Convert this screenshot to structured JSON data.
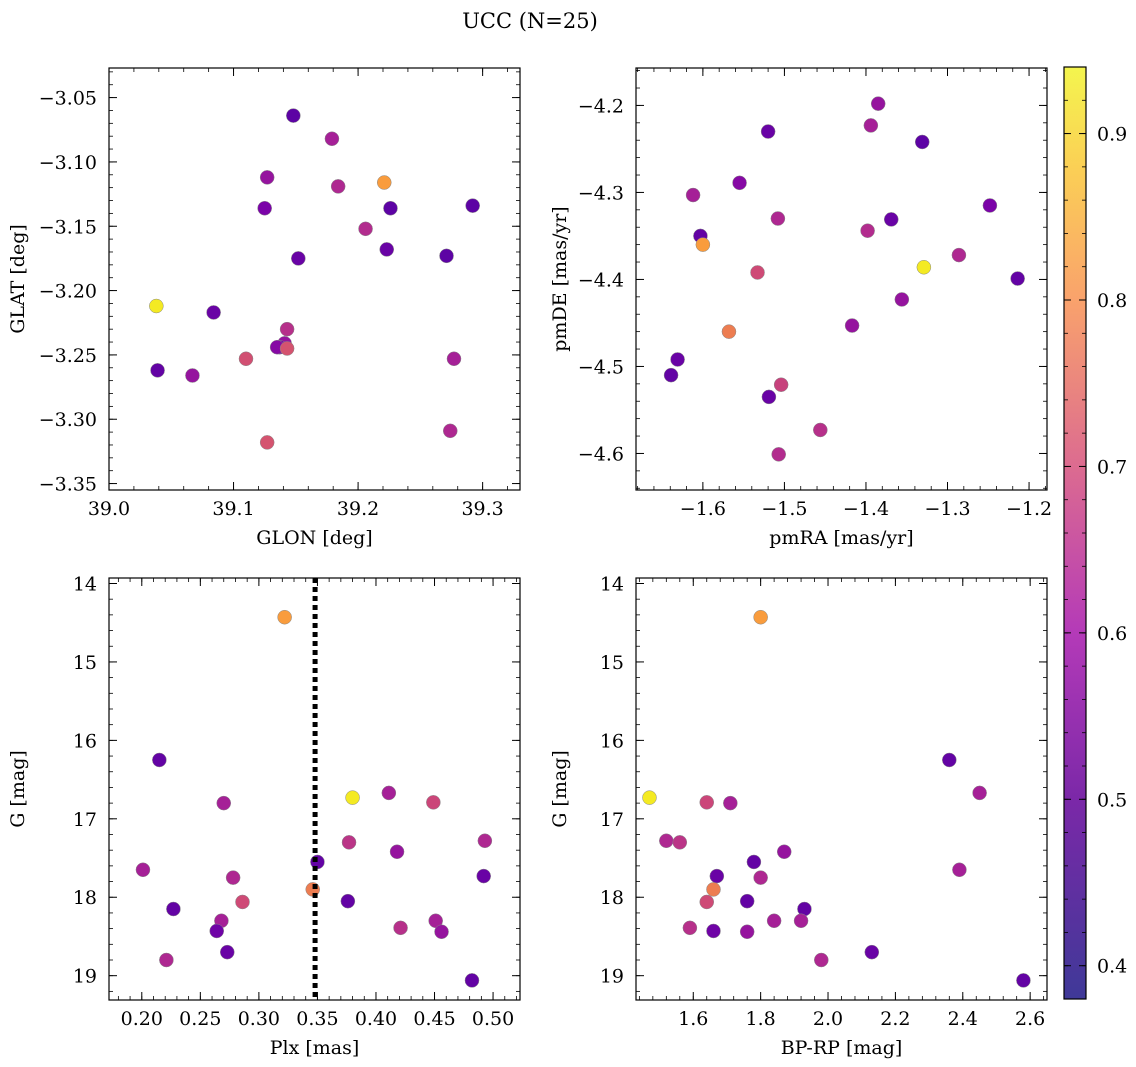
{
  "figure": {
    "title": "UCC (N=25)"
  },
  "colorbar": {
    "colormap": "plasma",
    "vmin": 0.38,
    "vmax": 0.94,
    "ticks": [
      0.4,
      0.5,
      0.6,
      0.7,
      0.8,
      0.9
    ],
    "tick_labels": [
      "0.4",
      "0.5",
      "0.6",
      "0.7",
      "0.8",
      "0.9"
    ]
  },
  "chart_data": [
    {
      "type": "scatter",
      "xlabel": "GLON [deg]",
      "ylabel": "GLAT [deg]",
      "xlim": [
        39.0,
        39.33
      ],
      "ylim": [
        -3.355,
        -3.027
      ],
      "xticks": [
        39.0,
        39.1,
        39.2,
        39.3
      ],
      "xtick_labels": [
        "39.0",
        "39.1",
        "39.2",
        "39.3"
      ],
      "yticks": [
        -3.05,
        -3.1,
        -3.15,
        -3.2,
        -3.25,
        -3.3,
        -3.35
      ],
      "ytick_labels": [
        "−3.05",
        "−3.10",
        "−3.15",
        "−3.20",
        "−3.25",
        "−3.30",
        "−3.35"
      ],
      "points": [
        {
          "x": 39.148,
          "y": -3.064,
          "c": 0.4
        },
        {
          "x": 39.179,
          "y": -3.082,
          "c": 0.53
        },
        {
          "x": 39.127,
          "y": -3.112,
          "c": 0.5
        },
        {
          "x": 39.184,
          "y": -3.119,
          "c": 0.55
        },
        {
          "x": 39.221,
          "y": -3.116,
          "c": 0.8
        },
        {
          "x": 39.125,
          "y": -3.136,
          "c": 0.45
        },
        {
          "x": 39.226,
          "y": -3.136,
          "c": 0.4
        },
        {
          "x": 39.292,
          "y": -3.134,
          "c": 0.4
        },
        {
          "x": 39.206,
          "y": -3.152,
          "c": 0.56
        },
        {
          "x": 39.223,
          "y": -3.168,
          "c": 0.42
        },
        {
          "x": 39.152,
          "y": -3.175,
          "c": 0.42
        },
        {
          "x": 39.271,
          "y": -3.173,
          "c": 0.4
        },
        {
          "x": 39.038,
          "y": -3.212,
          "c": 0.93
        },
        {
          "x": 39.084,
          "y": -3.217,
          "c": 0.42
        },
        {
          "x": 39.143,
          "y": -3.23,
          "c": 0.57
        },
        {
          "x": 39.141,
          "y": -3.241,
          "c": 0.5
        },
        {
          "x": 39.137,
          "y": -3.244,
          "c": 0.43
        },
        {
          "x": 39.135,
          "y": -3.244,
          "c": 0.47
        },
        {
          "x": 39.143,
          "y": -3.245,
          "c": 0.65
        },
        {
          "x": 39.11,
          "y": -3.253,
          "c": 0.64
        },
        {
          "x": 39.277,
          "y": -3.253,
          "c": 0.53
        },
        {
          "x": 39.039,
          "y": -3.262,
          "c": 0.41
        },
        {
          "x": 39.067,
          "y": -3.266,
          "c": 0.5
        },
        {
          "x": 39.127,
          "y": -3.318,
          "c": 0.65
        },
        {
          "x": 39.274,
          "y": -3.309,
          "c": 0.55
        }
      ]
    },
    {
      "type": "scatter",
      "xlabel": "pmRA [mas/yr]",
      "ylabel": "pmDE [mas/yr]",
      "xlim": [
        -1.682,
        -1.178
      ],
      "ylim": [
        -4.642,
        -4.157
      ],
      "xticks": [
        -1.6,
        -1.5,
        -1.4,
        -1.3,
        -1.2
      ],
      "xtick_labels": [
        "−1.6",
        "−1.5",
        "−1.4",
        "−1.3",
        "−1.2"
      ],
      "yticks": [
        -4.2,
        -4.3,
        -4.4,
        -4.5,
        -4.6
      ],
      "ytick_labels": [
        "−4.2",
        "−4.3",
        "−4.4",
        "−4.5",
        "−4.6"
      ],
      "points": [
        {
          "x": -1.385,
          "y": -4.198,
          "c": 0.5
        },
        {
          "x": -1.394,
          "y": -4.223,
          "c": 0.53
        },
        {
          "x": -1.52,
          "y": -4.23,
          "c": 0.42
        },
        {
          "x": -1.331,
          "y": -4.242,
          "c": 0.4
        },
        {
          "x": -1.555,
          "y": -4.289,
          "c": 0.47
        },
        {
          "x": -1.612,
          "y": -4.303,
          "c": 0.53
        },
        {
          "x": -1.248,
          "y": -4.315,
          "c": 0.45
        },
        {
          "x": -1.508,
          "y": -4.33,
          "c": 0.55
        },
        {
          "x": -1.369,
          "y": -4.331,
          "c": 0.42
        },
        {
          "x": -1.398,
          "y": -4.344,
          "c": 0.56
        },
        {
          "x": -1.603,
          "y": -4.35,
          "c": 0.41
        },
        {
          "x": -1.6,
          "y": -4.36,
          "c": 0.8
        },
        {
          "x": -1.286,
          "y": -4.372,
          "c": 0.55
        },
        {
          "x": -1.329,
          "y": -4.386,
          "c": 0.93
        },
        {
          "x": -1.533,
          "y": -4.392,
          "c": 0.63
        },
        {
          "x": -1.214,
          "y": -4.399,
          "c": 0.41
        },
        {
          "x": -1.356,
          "y": -4.423,
          "c": 0.5
        },
        {
          "x": -1.417,
          "y": -4.453,
          "c": 0.5
        },
        {
          "x": -1.568,
          "y": -4.46,
          "c": 0.74
        },
        {
          "x": -1.631,
          "y": -4.492,
          "c": 0.42
        },
        {
          "x": -1.639,
          "y": -4.51,
          "c": 0.41
        },
        {
          "x": -1.504,
          "y": -4.521,
          "c": 0.61
        },
        {
          "x": -1.519,
          "y": -4.535,
          "c": 0.42
        },
        {
          "x": -1.456,
          "y": -4.573,
          "c": 0.57
        },
        {
          "x": -1.507,
          "y": -4.601,
          "c": 0.56
        }
      ]
    },
    {
      "type": "scatter",
      "xlabel": "Plx [mas]",
      "ylabel": "G [mag]",
      "xlim": [
        0.172,
        0.523
      ],
      "ylim": [
        19.31,
        13.93
      ],
      "xticks": [
        0.2,
        0.25,
        0.3,
        0.35,
        0.4,
        0.45,
        0.5
      ],
      "xtick_labels": [
        "0.20",
        "0.25",
        "0.30",
        "0.35",
        "0.40",
        "0.45",
        "0.50"
      ],
      "yticks": [
        14,
        15,
        16,
        17,
        18,
        19
      ],
      "ytick_labels": [
        "14",
        "15",
        "16",
        "17",
        "18",
        "19"
      ],
      "vline": {
        "x": 0.348,
        "color": "#000000",
        "style": "dotted"
      },
      "points": [
        {
          "x": 0.322,
          "y": 14.43,
          "c": 0.8
        },
        {
          "x": 0.215,
          "y": 16.25,
          "c": 0.41
        },
        {
          "x": 0.38,
          "y": 16.73,
          "c": 0.93
        },
        {
          "x": 0.411,
          "y": 16.67,
          "c": 0.53
        },
        {
          "x": 0.27,
          "y": 16.8,
          "c": 0.53
        },
        {
          "x": 0.449,
          "y": 16.79,
          "c": 0.62
        },
        {
          "x": 0.493,
          "y": 17.28,
          "c": 0.55
        },
        {
          "x": 0.377,
          "y": 17.3,
          "c": 0.58
        },
        {
          "x": 0.418,
          "y": 17.42,
          "c": 0.5
        },
        {
          "x": 0.35,
          "y": 17.55,
          "c": 0.41
        },
        {
          "x": 0.201,
          "y": 17.65,
          "c": 0.53
        },
        {
          "x": 0.492,
          "y": 17.73,
          "c": 0.42
        },
        {
          "x": 0.278,
          "y": 17.75,
          "c": 0.55
        },
        {
          "x": 0.346,
          "y": 17.9,
          "c": 0.74
        },
        {
          "x": 0.376,
          "y": 18.05,
          "c": 0.41
        },
        {
          "x": 0.286,
          "y": 18.06,
          "c": 0.63
        },
        {
          "x": 0.227,
          "y": 18.15,
          "c": 0.41
        },
        {
          "x": 0.268,
          "y": 18.3,
          "c": 0.53
        },
        {
          "x": 0.451,
          "y": 18.3,
          "c": 0.53
        },
        {
          "x": 0.421,
          "y": 18.39,
          "c": 0.57
        },
        {
          "x": 0.264,
          "y": 18.43,
          "c": 0.43
        },
        {
          "x": 0.456,
          "y": 18.44,
          "c": 0.5
        },
        {
          "x": 0.273,
          "y": 18.7,
          "c": 0.42
        },
        {
          "x": 0.221,
          "y": 18.8,
          "c": 0.55
        },
        {
          "x": 0.482,
          "y": 19.06,
          "c": 0.41
        }
      ]
    },
    {
      "type": "scatter",
      "xlabel": "BP-RP [mag]",
      "ylabel": "G [mag]",
      "xlim": [
        1.43,
        2.65
      ],
      "ylim": [
        19.31,
        13.93
      ],
      "xticks": [
        1.6,
        1.8,
        2.0,
        2.2,
        2.4,
        2.6
      ],
      "xtick_labels": [
        "1.6",
        "1.8",
        "2.0",
        "2.2",
        "2.4",
        "2.6"
      ],
      "yticks": [
        14,
        15,
        16,
        17,
        18,
        19
      ],
      "ytick_labels": [
        "14",
        "15",
        "16",
        "17",
        "18",
        "19"
      ],
      "points": [
        {
          "x": 1.8,
          "y": 14.43,
          "c": 0.8
        },
        {
          "x": 2.36,
          "y": 16.25,
          "c": 0.41
        },
        {
          "x": 1.47,
          "y": 16.73,
          "c": 0.93
        },
        {
          "x": 2.45,
          "y": 16.67,
          "c": 0.53
        },
        {
          "x": 1.64,
          "y": 16.79,
          "c": 0.62
        },
        {
          "x": 1.71,
          "y": 16.8,
          "c": 0.53
        },
        {
          "x": 1.52,
          "y": 17.28,
          "c": 0.55
        },
        {
          "x": 1.56,
          "y": 17.3,
          "c": 0.58
        },
        {
          "x": 1.87,
          "y": 17.42,
          "c": 0.5
        },
        {
          "x": 1.78,
          "y": 17.55,
          "c": 0.41
        },
        {
          "x": 2.39,
          "y": 17.65,
          "c": 0.53
        },
        {
          "x": 1.67,
          "y": 17.73,
          "c": 0.42
        },
        {
          "x": 1.8,
          "y": 17.75,
          "c": 0.55
        },
        {
          "x": 1.66,
          "y": 17.9,
          "c": 0.74
        },
        {
          "x": 1.76,
          "y": 18.05,
          "c": 0.41
        },
        {
          "x": 1.64,
          "y": 18.06,
          "c": 0.63
        },
        {
          "x": 1.93,
          "y": 18.15,
          "c": 0.41
        },
        {
          "x": 1.84,
          "y": 18.3,
          "c": 0.53
        },
        {
          "x": 1.92,
          "y": 18.3,
          "c": 0.53
        },
        {
          "x": 1.59,
          "y": 18.39,
          "c": 0.57
        },
        {
          "x": 1.66,
          "y": 18.43,
          "c": 0.43
        },
        {
          "x": 1.76,
          "y": 18.44,
          "c": 0.5
        },
        {
          "x": 2.13,
          "y": 18.7,
          "c": 0.42
        },
        {
          "x": 1.98,
          "y": 18.8,
          "c": 0.55
        },
        {
          "x": 2.58,
          "y": 19.06,
          "c": 0.41
        }
      ]
    }
  ]
}
